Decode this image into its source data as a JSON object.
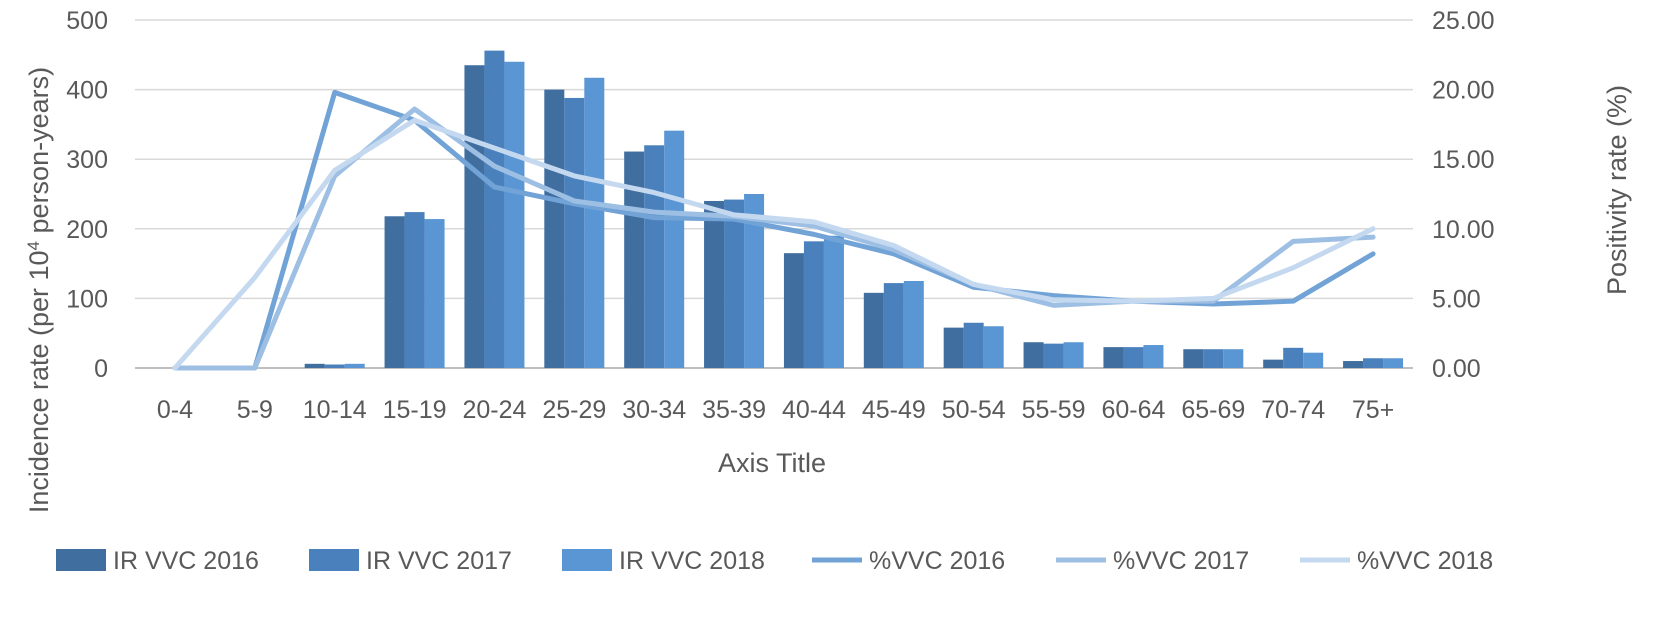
{
  "chart_data": {
    "type": "bar",
    "categories": [
      "0-4",
      "5-9",
      "10-14",
      "15-19",
      "20-24",
      "25-29",
      "30-34",
      "35-39",
      "40-44",
      "45-49",
      "50-54",
      "55-59",
      "60-64",
      "65-69",
      "70-74",
      "75+"
    ],
    "series": [
      {
        "name": "IR VVC 2016",
        "kind": "bar",
        "axis": "left",
        "color": "#3f6e9f",
        "values": [
          0,
          0,
          6,
          218,
          435,
          400,
          311,
          240,
          165,
          108,
          58,
          37,
          30,
          27,
          12,
          10
        ]
      },
      {
        "name": "IR VVC 2017",
        "kind": "bar",
        "axis": "left",
        "color": "#4a80bc",
        "values": [
          0,
          0,
          5,
          224,
          456,
          388,
          320,
          242,
          182,
          122,
          65,
          35,
          30,
          27,
          29,
          14
        ]
      },
      {
        "name": "IR VVC 2018",
        "kind": "bar",
        "axis": "left",
        "color": "#5a96d4",
        "values": [
          0,
          0,
          6,
          214,
          440,
          417,
          341,
          250,
          190,
          125,
          60,
          37,
          33,
          27,
          22,
          14
        ]
      },
      {
        "name": "%VVC 2016",
        "kind": "line",
        "axis": "right",
        "color": "#72a3d6",
        "values": [
          0,
          0,
          19.8,
          17.8,
          13.0,
          11.8,
          10.8,
          10.7,
          9.6,
          8.2,
          5.8,
          5.2,
          4.8,
          4.6,
          4.8,
          8.2
        ]
      },
      {
        "name": "%VVC 2017",
        "kind": "line",
        "axis": "right",
        "color": "#9ebfe4",
        "values": [
          0,
          0,
          13.8,
          18.6,
          14.5,
          12.0,
          11.2,
          10.9,
          10.2,
          8.5,
          6.0,
          4.5,
          4.8,
          4.8,
          9.1,
          9.4
        ]
      },
      {
        "name": "%VVC 2018",
        "kind": "line",
        "axis": "right",
        "color": "#c4d9f0",
        "values": [
          0,
          6.5,
          14.2,
          17.8,
          15.8,
          13.8,
          12.6,
          11.0,
          10.5,
          8.8,
          6.0,
          4.9,
          4.8,
          5.0,
          7.2,
          10.0
        ]
      }
    ],
    "y_left": {
      "label_pre": "Incidence rate (per 10",
      "label_sup": "4",
      "label_post": " person-years)",
      "ylim": [
        0,
        500
      ],
      "ticks": [
        "0",
        "100",
        "200",
        "300",
        "400",
        "500"
      ]
    },
    "y_right": {
      "label": "Positivity rate (%)",
      "ylim": [
        0,
        25
      ],
      "ticks": [
        "0.00",
        "5.00",
        "10.00",
        "15.00",
        "20.00",
        "25.00"
      ]
    },
    "xlabel": "Axis Title",
    "grid": true,
    "legend": "bottom"
  }
}
